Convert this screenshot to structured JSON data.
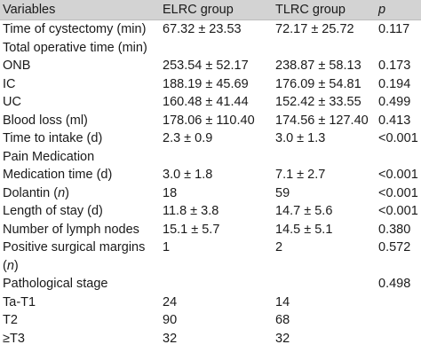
{
  "headers": [
    "Variables",
    "ELRC group",
    "TLRC group",
    "p"
  ],
  "rows": [
    {
      "label": "Time of cystectomy (min)",
      "elrc": "67.32 ± 23.53",
      "tlrc": "72.17 ± 25.72",
      "p": "0.117",
      "indent": false
    },
    {
      "label": "Total operative time (min)",
      "elrc": "",
      "tlrc": "",
      "p": "",
      "indent": false
    },
    {
      "label": "ONB",
      "elrc": "253.54 ± 52.17",
      "tlrc": "238.87 ± 58.13",
      "p": "0.173",
      "indent": true
    },
    {
      "label": "IC",
      "elrc": "188.19 ± 45.69",
      "tlrc": "176.09 ± 54.81",
      "p": "0.194",
      "indent": true
    },
    {
      "label": "UC",
      "elrc": "160.48 ± 41.44",
      "tlrc": "152.42 ± 33.55",
      "p": "0.499",
      "indent": true
    },
    {
      "label": "Blood loss (ml)",
      "elrc": "178.06 ± 110.40",
      "tlrc": "174.56 ± 127.40",
      "p": "0.413",
      "indent": false
    },
    {
      "label": "Time to intake (d)",
      "elrc": "2.3 ± 0.9",
      "tlrc": "3.0 ± 1.3",
      "p": "<0.001",
      "indent": false
    },
    {
      "label": "Pain Medication",
      "elrc": "",
      "tlrc": "",
      "p": "",
      "indent": false
    },
    {
      "label": "Medication time (d)",
      "elrc": "3.0 ± 1.8",
      "tlrc": "7.1 ± 2.7",
      "p": "<0.001",
      "indent": true
    },
    {
      "label": "Dolantin (n)",
      "elrc": "18",
      "tlrc": "59",
      "p": "<0.001",
      "indent": true
    },
    {
      "label": "Length of stay (d)",
      "elrc": "11.8 ± 3.8",
      "tlrc": "14.7 ± 5.6",
      "p": "<0.001",
      "indent": false
    },
    {
      "label": "Number of lymph nodes",
      "elrc": "15.1 ± 5.7",
      "tlrc": "14.5 ± 5.1",
      "p": "0.380",
      "indent": false
    },
    {
      "label": "Positive surgical margins",
      "elrc": "1",
      "tlrc": "2",
      "p": "0.572",
      "indent": false
    },
    {
      "label": "(n)",
      "elrc": "",
      "tlrc": "",
      "p": "",
      "indent": true
    },
    {
      "label": "Pathological stage",
      "elrc": "",
      "tlrc": "",
      "p": "0.498",
      "indent": false
    },
    {
      "label": "Ta-T1",
      "elrc": "24",
      "tlrc": "14",
      "p": "",
      "indent": true
    },
    {
      "label": "T2",
      "elrc": "90",
      "tlrc": "68",
      "p": "",
      "indent": true
    },
    {
      "label": "≥T3",
      "elrc": "32",
      "tlrc": "32",
      "p": "",
      "indent": true
    }
  ],
  "colors": {
    "header_bg": "#d3d3d3",
    "text": "#1a1a1a",
    "rule": "#bdbdbd"
  }
}
